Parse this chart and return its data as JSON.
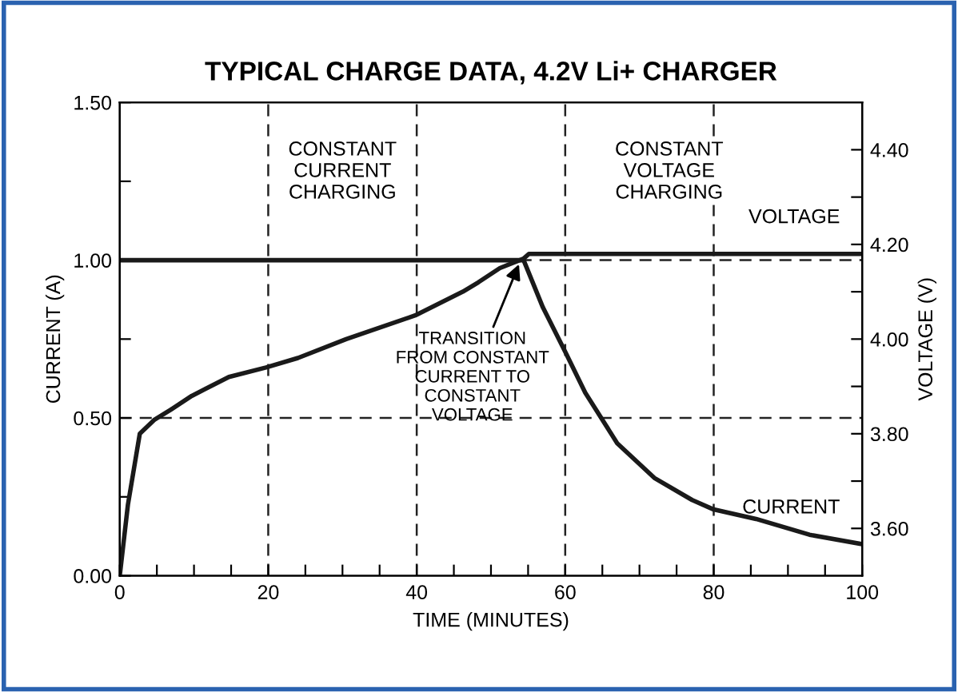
{
  "chart_data": {
    "type": "line",
    "title": "TYPICAL CHARGE DATA, 4.2V Li+ CHARGER",
    "xlabel": "TIME (MINUTES)",
    "ylabel": "CURRENT (A)",
    "y2label": "VOLTAGE (V)",
    "series": [
      {
        "name": "CURRENT",
        "color": "#1a1a1a",
        "x": [
          0,
          54.4,
          57,
          60,
          62.7,
          67,
          72,
          77.1,
          80,
          85.7,
          92.9,
          100
        ],
        "values": [
          1.0,
          1.0,
          0.85,
          0.71,
          0.58,
          0.42,
          0.31,
          0.24,
          0.21,
          0.18,
          0.13,
          0.1
        ]
      },
      {
        "name": "VOLTAGE",
        "color": "#1a1a1a",
        "axis": "y2",
        "x": [
          0,
          1.1,
          2.7,
          4.7,
          6.8,
          9.7,
          14.7,
          19.7,
          24,
          30.5,
          39.8,
          46.2,
          48.3,
          51.2,
          54.4,
          55.1,
          56.9,
          100
        ],
        "values": [
          3.5,
          3.65,
          3.8,
          3.83,
          3.85,
          3.88,
          3.92,
          3.94,
          3.96,
          4.0,
          4.05,
          4.1,
          4.12,
          4.15,
          4.17,
          4.18,
          4.18,
          4.18
        ]
      }
    ],
    "xlim": [
      0,
      100
    ],
    "xticks": [
      0,
      {
        "value": 5,
        "label": null
      },
      {
        "value": 10,
        "label": null
      },
      {
        "value": 15,
        "label": null
      },
      20,
      {
        "value": 25,
        "label": null
      },
      {
        "value": 30,
        "label": null
      },
      {
        "value": 35,
        "label": null
      },
      40,
      {
        "value": 45,
        "label": null
      },
      {
        "value": 50,
        "label": null
      },
      {
        "value": 55,
        "label": null
      },
      60,
      {
        "value": 65,
        "label": null
      },
      {
        "value": 70,
        "label": null
      },
      {
        "value": 75,
        "label": null
      },
      80,
      {
        "value": 85,
        "label": null
      },
      {
        "value": 90,
        "label": null
      },
      {
        "value": 95,
        "label": null
      },
      100
    ],
    "ylim": [
      0,
      1.5
    ],
    "yticks": [
      {
        "value": 0,
        "label": "0.00"
      },
      {
        "value": 0.25,
        "label": null
      },
      {
        "value": 0.5,
        "label": "0.50"
      },
      {
        "value": 0.75,
        "label": null
      },
      {
        "value": 1.0,
        "label": "1.00"
      },
      {
        "value": 1.25,
        "label": null
      },
      {
        "value": 1.5,
        "label": "1.50"
      }
    ],
    "y2lim": [
      3.5,
      4.5
    ],
    "y2ticks": [
      {
        "value": 3.6,
        "label": "3.60"
      },
      {
        "value": 3.7,
        "label": null
      },
      {
        "value": 3.8,
        "label": "3.80"
      },
      {
        "value": 3.9,
        "label": null
      },
      {
        "value": 4.0,
        "label": "4.00"
      },
      {
        "value": 4.1,
        "label": null
      },
      {
        "value": 4.2,
        "label": "4.20"
      },
      {
        "value": 4.3,
        "label": null
      },
      {
        "value": 4.4,
        "label": "4.40"
      }
    ],
    "ref_lines": [
      {
        "axis": "x",
        "value": 20,
        "line_style": "dashed"
      },
      {
        "axis": "x",
        "value": 40,
        "line_style": "dashed"
      },
      {
        "axis": "x",
        "value": 60,
        "line_style": "dashed"
      },
      {
        "axis": "x",
        "value": 80,
        "line_style": "dashed"
      },
      {
        "axis": "y",
        "value": 0.5,
        "line_style": "dashed"
      },
      {
        "axis": "y",
        "value": 1.0,
        "line_style": "dashed"
      }
    ],
    "annotations": [
      "CONSTANT\nCURRENT\nCHARGING",
      "CONSTANT\nVOLTAGE\nCHARGING",
      {
        "text": "TRANSITION\nFROM CONSTANT\nCURRENT TO\nCONSTANT\nVOLTAGE",
        "x": 54,
        "y": 1.0
      }
    ],
    "grid": false,
    "legend": false,
    "line_style": "solid",
    "marker": "none"
  }
}
